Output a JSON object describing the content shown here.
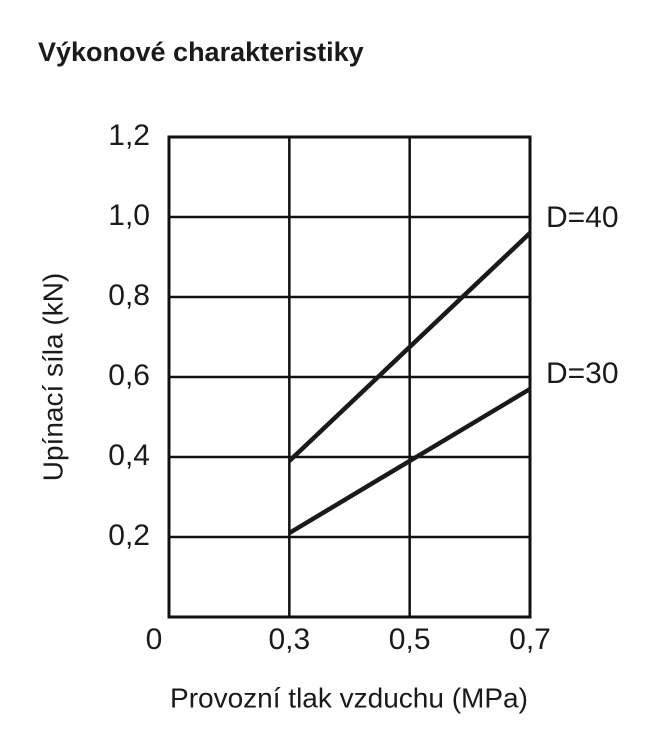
{
  "chart_data": {
    "type": "line",
    "title": "Výkonové charakteristiky",
    "x_label": "Provozní tlak vzduchu (MPa)",
    "y_label": "Upínací síla (kN)",
    "x": [
      0.3,
      0.7
    ],
    "series": [
      {
        "name": "D=40",
        "color": "#1a1a1a",
        "values": [
          0.39,
          0.96
        ]
      },
      {
        "name": "D=30",
        "color": "#1a1a1a",
        "values": [
          0.21,
          0.57
        ]
      }
    ],
    "xlim": [
      0.1,
      0.7
    ],
    "xticks": [
      {
        "value": 0.3,
        "label": "0,3"
      },
      {
        "value": 0.5,
        "label": "0,5"
      },
      {
        "value": 0.7,
        "label": "0,7"
      }
    ],
    "ylim": [
      0,
      1.2
    ],
    "yticks": [
      0,
      {
        "value": 0.2,
        "label": "0,2"
      },
      {
        "value": 0.4,
        "label": "0,4"
      },
      {
        "value": 0.6,
        "label": "0,6"
      },
      {
        "value": 0.8,
        "label": "0,8"
      },
      {
        "value": 1.0,
        "label": "1,0"
      },
      {
        "value": 1.2,
        "label": "1,2"
      }
    ],
    "grid": true
  }
}
